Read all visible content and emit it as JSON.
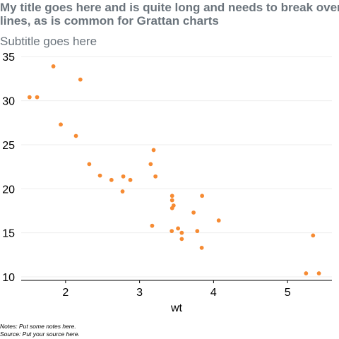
{
  "chart_data": {
    "type": "scatter",
    "title_lines": [
      "My title goes here and is quite long and needs to break over",
      "lines, as is common for Grattan charts"
    ],
    "subtitle": "Subtitle goes here",
    "xlabel": "wt",
    "ylabel": "",
    "xlim": [
      1.4,
      5.6
    ],
    "ylim": [
      9.6,
      35.5
    ],
    "x_ticks": [
      2,
      3,
      4,
      5
    ],
    "y_ticks": [
      10,
      15,
      20,
      25,
      30,
      35
    ],
    "grid": "horizontal",
    "legend": "none",
    "point_color": "#f68b33",
    "gridline_color": "#eeeeee",
    "points": [
      {
        "x": 2.62,
        "y": 21.0
      },
      {
        "x": 2.875,
        "y": 21.0
      },
      {
        "x": 2.32,
        "y": 22.8
      },
      {
        "x": 3.215,
        "y": 21.4
      },
      {
        "x": 3.44,
        "y": 18.7
      },
      {
        "x": 3.46,
        "y": 18.1
      },
      {
        "x": 3.57,
        "y": 14.3
      },
      {
        "x": 3.19,
        "y": 24.4
      },
      {
        "x": 3.15,
        "y": 22.8
      },
      {
        "x": 3.44,
        "y": 19.2
      },
      {
        "x": 3.44,
        "y": 17.8
      },
      {
        "x": 4.07,
        "y": 16.4
      },
      {
        "x": 3.73,
        "y": 17.3
      },
      {
        "x": 3.78,
        "y": 15.2
      },
      {
        "x": 5.25,
        "y": 10.4
      },
      {
        "x": 5.424,
        "y": 10.4
      },
      {
        "x": 5.345,
        "y": 14.7
      },
      {
        "x": 2.2,
        "y": 32.4
      },
      {
        "x": 1.615,
        "y": 30.4
      },
      {
        "x": 1.835,
        "y": 33.9
      },
      {
        "x": 2.465,
        "y": 21.5
      },
      {
        "x": 3.52,
        "y": 15.5
      },
      {
        "x": 3.435,
        "y": 15.2
      },
      {
        "x": 3.84,
        "y": 13.3
      },
      {
        "x": 3.845,
        "y": 19.2
      },
      {
        "x": 1.935,
        "y": 27.3
      },
      {
        "x": 2.14,
        "y": 26.0
      },
      {
        "x": 1.513,
        "y": 30.4
      },
      {
        "x": 3.17,
        "y": 15.8
      },
      {
        "x": 2.77,
        "y": 19.7
      },
      {
        "x": 3.57,
        "y": 15.0
      },
      {
        "x": 2.78,
        "y": 21.4
      }
    ]
  },
  "notes": "Notes: Put some notes here.",
  "source": "Source: Put your source here."
}
